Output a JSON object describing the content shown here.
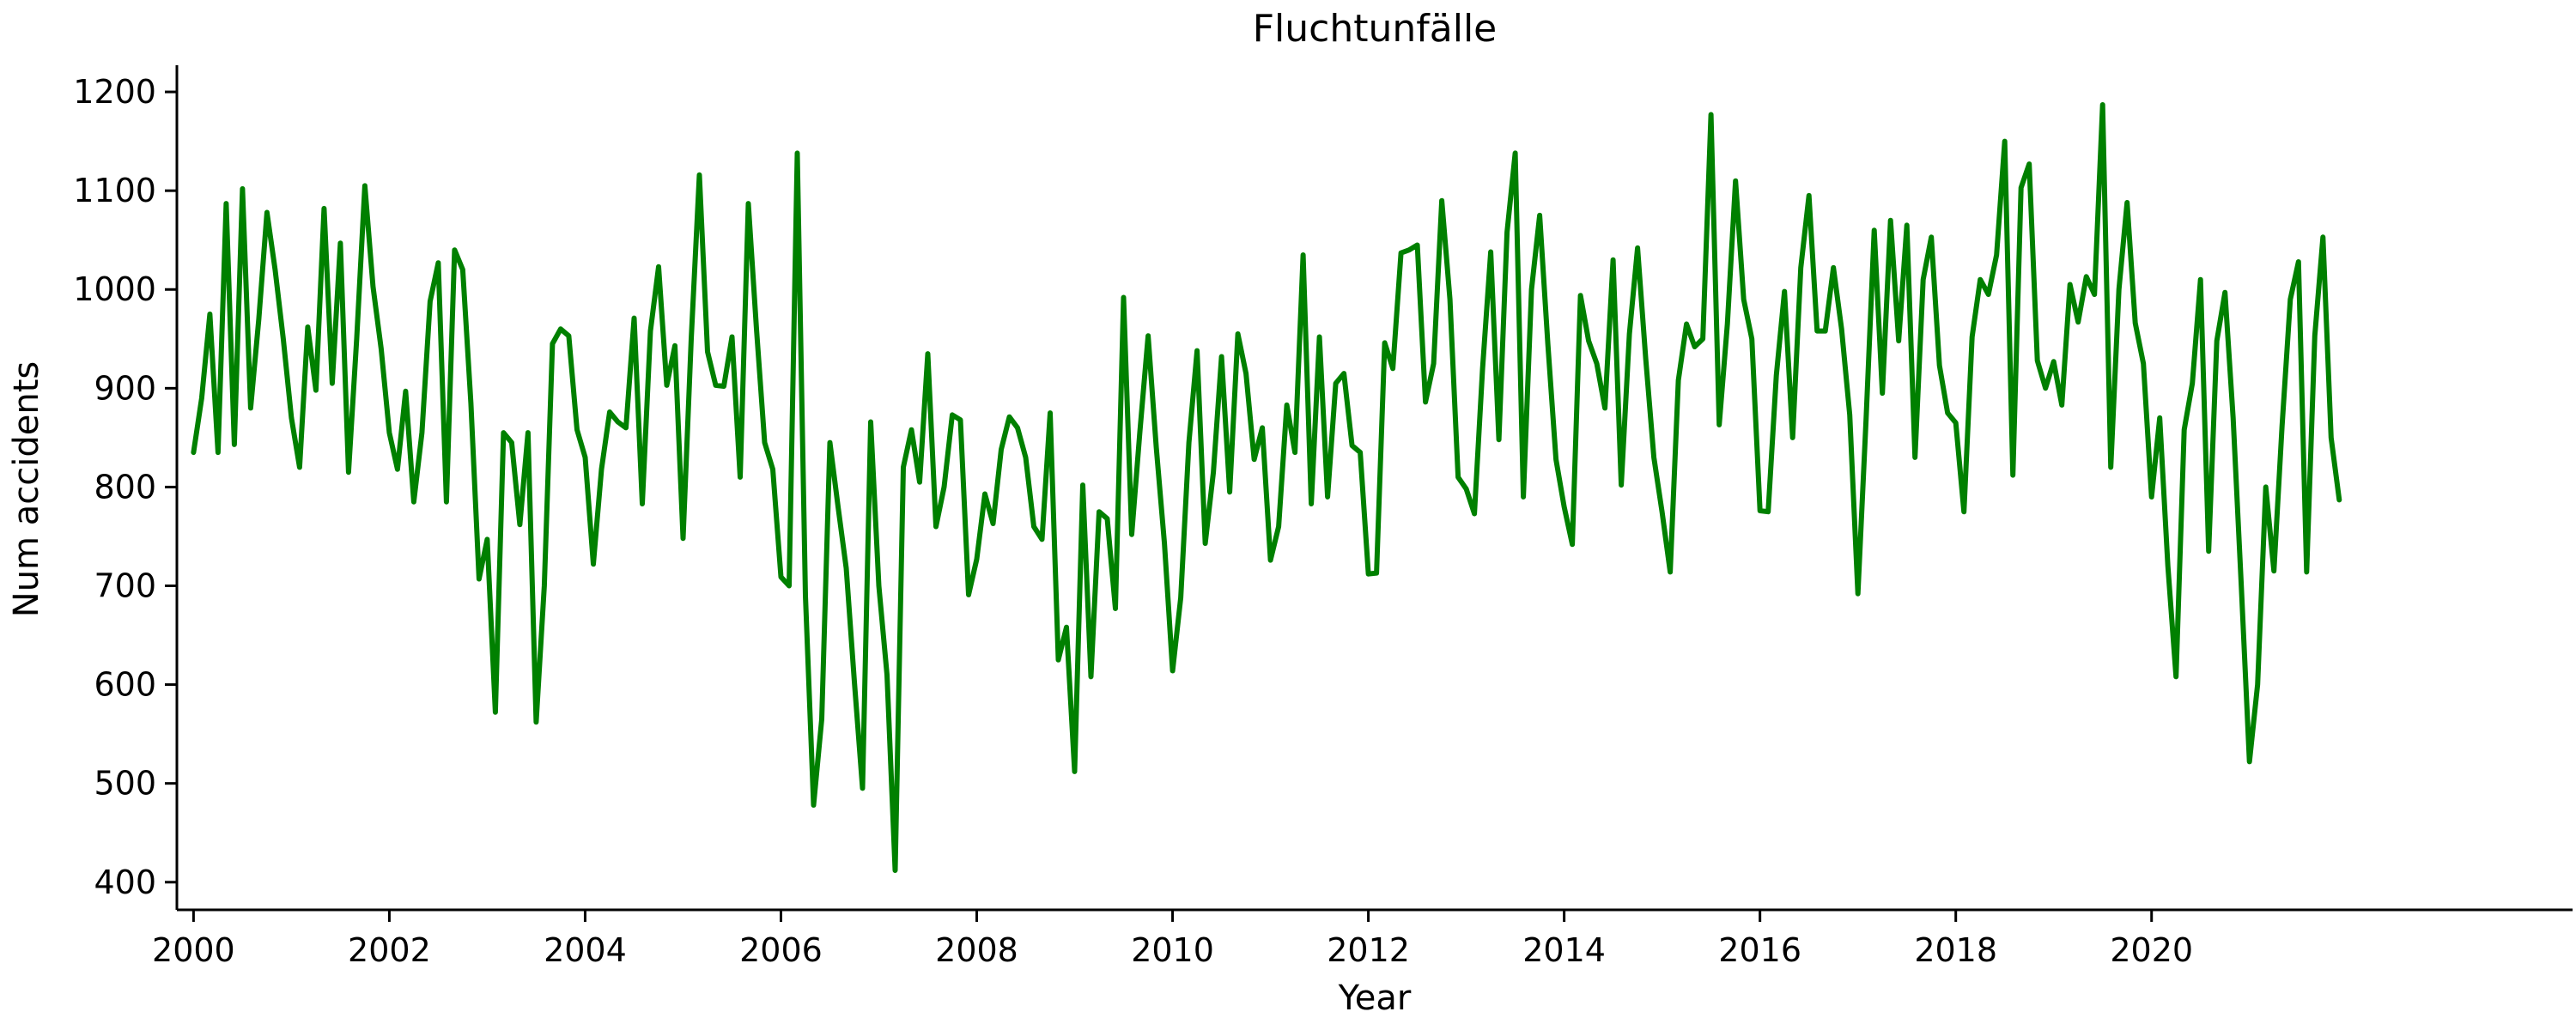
{
  "chart_data": {
    "type": "line",
    "title": "Fluchtunfälle",
    "xlabel": "Year",
    "ylabel": "Num accidents",
    "xlim": [
      1999.83,
      2024.3
    ],
    "ylim": [
      372,
      1227
    ],
    "grid": false,
    "x_ticks": [
      "2000",
      "2002",
      "2004",
      "2006",
      "2008",
      "2010",
      "2012",
      "2014",
      "2016",
      "2018",
      "2020"
    ],
    "y_ticks": [
      "400",
      "500",
      "600",
      "700",
      "800",
      "900",
      "1000",
      "1100",
      "1200"
    ],
    "series": [
      {
        "color": "#008000",
        "x_start": "2000-01",
        "frequency": "monthly",
        "values": [
          835,
          890,
          975,
          835,
          1087,
          843,
          1102,
          880,
          970,
          1078,
          1020,
          950,
          870,
          820,
          962,
          898,
          1082,
          905,
          1047,
          815,
          950,
          1105,
          1003,
          940,
          855,
          818,
          897,
          785,
          855,
          988,
          1027,
          785,
          1040,
          1020,
          885,
          707,
          747,
          572,
          855,
          845,
          762,
          855,
          562,
          700,
          945,
          960,
          953,
          858,
          830,
          722,
          818,
          876,
          866,
          860,
          971,
          783,
          958,
          1023,
          903,
          943,
          748,
          950,
          1116,
          937,
          903,
          902,
          952,
          810,
          1087,
          960,
          845,
          818,
          709,
          700,
          1138,
          690,
          478,
          565,
          845,
          780,
          718,
          603,
          495,
          866,
          700,
          610,
          412,
          820,
          858,
          805,
          935,
          760,
          800,
          873,
          868,
          691,
          727,
          793,
          763,
          838,
          871,
          860,
          830,
          760,
          747,
          875,
          625,
          658,
          512,
          802,
          608,
          775,
          768,
          677,
          992,
          752,
          856,
          953,
          840,
          743,
          614,
          688,
          845,
          938,
          743,
          815,
          932,
          795,
          955,
          915,
          828,
          860,
          726,
          760,
          883,
          835,
          1035,
          783,
          952,
          790,
          905,
          915,
          842,
          835,
          712,
          713,
          946,
          920,
          1037,
          1040,
          1045,
          886,
          925,
          1090,
          990,
          810,
          798,
          773,
          920,
          1038,
          848,
          1058,
          1138,
          790,
          1000,
          1075,
          945,
          828,
          780,
          742,
          994,
          948,
          925,
          880,
          1030,
          802,
          955,
          1042,
          930,
          830,
          775,
          714,
          908,
          965,
          942,
          950,
          1177,
          863,
          965,
          1110,
          990,
          950,
          776,
          775,
          913,
          998,
          850,
          1022,
          1095,
          958,
          958,
          1022,
          960,
          873,
          692,
          868,
          1060,
          895,
          1070,
          948,
          1065,
          830,
          1010,
          1053,
          923,
          875,
          865,
          775,
          952,
          1010,
          995,
          1035,
          1150,
          812,
          1103,
          1127,
          928,
          900,
          927,
          883,
          1005,
          967,
          1013,
          995,
          1187,
          820,
          1000,
          1088,
          966,
          925,
          790,
          870,
          720,
          608,
          858,
          905,
          1010,
          735,
          948,
          997,
          870,
          700,
          522,
          600,
          800,
          715,
          862,
          990,
          1028,
          714,
          953,
          1053,
          850,
          787
        ]
      }
    ]
  }
}
